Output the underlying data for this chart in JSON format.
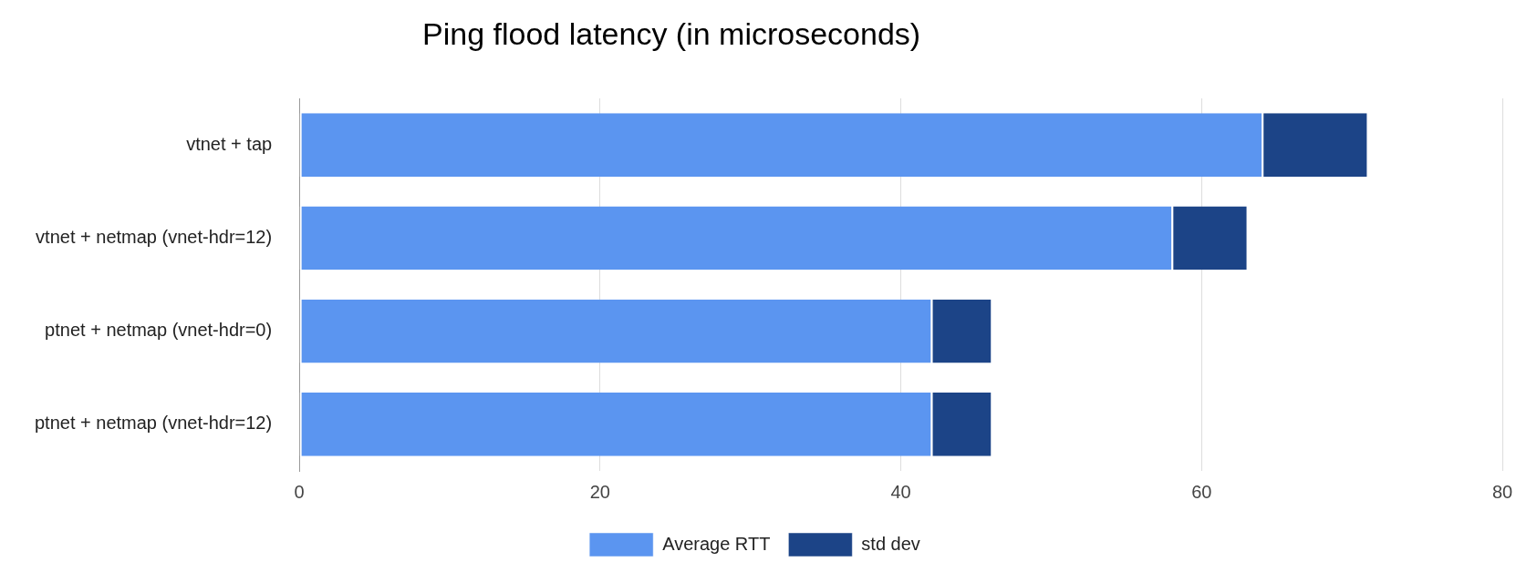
{
  "chart_data": {
    "type": "bar",
    "orientation": "horizontal",
    "stacked": true,
    "title": "Ping flood latency (in microseconds)",
    "categories": [
      "vtnet + tap",
      "vtnet + netmap (vnet-hdr=12)",
      "ptnet + netmap (vnet-hdr=0)",
      "ptnet + netmap (vnet-hdr=12)"
    ],
    "series": [
      {
        "name": "Average RTT",
        "color": "#5b95f0",
        "values": [
          64,
          58,
          42,
          42
        ]
      },
      {
        "name": "std dev",
        "color": "#1c4487",
        "values": [
          7,
          5,
          4,
          4
        ]
      }
    ],
    "xlim": [
      0,
      80
    ],
    "xticks": [
      0,
      20,
      40,
      60,
      80
    ],
    "grid": "x",
    "legend": "bottom"
  }
}
